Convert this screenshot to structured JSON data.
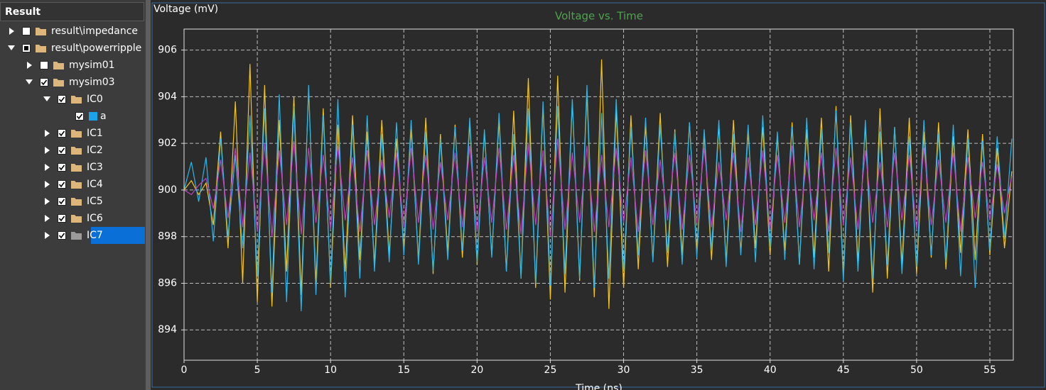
{
  "tree": {
    "title": "Result",
    "nodes": [
      {
        "label": "result\\impedance",
        "level": 0,
        "expanded": false,
        "checked": "unchecked",
        "icon": "folder"
      },
      {
        "label": "result\\powerripple",
        "level": 0,
        "expanded": true,
        "checked": "partial",
        "icon": "folder"
      },
      {
        "label": "mysim01",
        "level": 1,
        "expanded": false,
        "checked": "unchecked",
        "icon": "folder"
      },
      {
        "label": "mysim03",
        "level": 1,
        "expanded": true,
        "checked": "checked",
        "icon": "folder"
      },
      {
        "label": "IC0",
        "level": 2,
        "expanded": true,
        "checked": "checked",
        "icon": "folder"
      },
      {
        "label": "a",
        "level": 3,
        "expanded": null,
        "checked": "checked",
        "icon": "signal",
        "color": "#1aa3e8"
      },
      {
        "label": "IC1",
        "level": 2,
        "expanded": false,
        "checked": "checked",
        "icon": "folder"
      },
      {
        "label": "IC2",
        "level": 2,
        "expanded": false,
        "checked": "checked",
        "icon": "folder"
      },
      {
        "label": "IC3",
        "level": 2,
        "expanded": false,
        "checked": "checked",
        "icon": "folder"
      },
      {
        "label": "IC4",
        "level": 2,
        "expanded": false,
        "checked": "checked",
        "icon": "folder"
      },
      {
        "label": "IC5",
        "level": 2,
        "expanded": false,
        "checked": "checked",
        "icon": "folder"
      },
      {
        "label": "IC6",
        "level": 2,
        "expanded": false,
        "checked": "checked",
        "icon": "folder"
      },
      {
        "label": "IC7",
        "level": 2,
        "expanded": false,
        "checked": "checked",
        "icon": "folder",
        "selected": true
      }
    ]
  },
  "chart_data": {
    "type": "line",
    "title": "Voltage vs. Time",
    "y_label": "Voltage (mV)",
    "x_label": "Time (ns)",
    "xlim": [
      0,
      56.6
    ],
    "ylim": [
      892.7,
      906.9
    ],
    "xticks": [
      0,
      5,
      10,
      15,
      20,
      25,
      30,
      35,
      40,
      45,
      50,
      55
    ],
    "yticks": [
      894,
      896,
      898,
      900,
      902,
      904,
      906
    ],
    "grid": true,
    "x": [
      0,
      0.5,
      1,
      1.5,
      2,
      2.5,
      3,
      3.5,
      4,
      4.5,
      5,
      5.5,
      6,
      6.5,
      7,
      7.5,
      8,
      8.5,
      9,
      9.5,
      10,
      10.5,
      11,
      11.5,
      12,
      12.5,
      13,
      13.5,
      14,
      14.5,
      15,
      15.5,
      16,
      16.5,
      17,
      17.5,
      18,
      18.5,
      19,
      19.5,
      20,
      20.5,
      21,
      21.5,
      22,
      22.5,
      23,
      23.5,
      24,
      24.5,
      25,
      25.5,
      26,
      26.5,
      27,
      27.5,
      28,
      28.5,
      29,
      29.5,
      30,
      30.5,
      31,
      31.5,
      32,
      32.5,
      33,
      33.5,
      34,
      34.5,
      35,
      35.5,
      36,
      36.5,
      37,
      37.5,
      38,
      38.5,
      39,
      39.5,
      40,
      40.5,
      41,
      41.5,
      42,
      42.5,
      43,
      43.5,
      44,
      44.5,
      45,
      45.5,
      46,
      46.5,
      47,
      47.5,
      48,
      48.5,
      49,
      49.5,
      50,
      50.5,
      51,
      51.5,
      52,
      52.5,
      53,
      53.5,
      54,
      54.5,
      55,
      55.5,
      56,
      56.5
    ],
    "series": [
      {
        "color": "#f5c518",
        "values": [
          900,
          900.4,
          899.8,
          900.3,
          898.5,
          902.5,
          897.5,
          903.8,
          896,
          905.4,
          895.2,
          904.5,
          895,
          903,
          896.5,
          904,
          895.5,
          904.3,
          896,
          903.5,
          895.8,
          902.8,
          896.5,
          903.2,
          897,
          902.5,
          896.8,
          903,
          897.2,
          902.2,
          897.5,
          902.6,
          897,
          903.1,
          896.4,
          902.4,
          897.3,
          902.8,
          897.1,
          902.9,
          896.8,
          902.5,
          897.2,
          903,
          896.5,
          903.4,
          896.2,
          904.8,
          895.8,
          903.6,
          895.3,
          904.9,
          895.6,
          903.8,
          896.1,
          904.2,
          895.4,
          905.6,
          894.9,
          903.5,
          895.8,
          903.2,
          896.6,
          902.8,
          897,
          903.3,
          896.7,
          902.6,
          897.2,
          902.9,
          897.4,
          902.4,
          897,
          902.8,
          896.9,
          903,
          897.3,
          902.5,
          897.5,
          902.7,
          897.2,
          902.3,
          897.4,
          902.9,
          896.8,
          902.6,
          897.1,
          903.1,
          896.5,
          903.6,
          896.3,
          903.2,
          896.9,
          902.8,
          895.6,
          903.5,
          896.2,
          902.7,
          896.8,
          903.1,
          896.4,
          902.5,
          897.1,
          902.9,
          896.6,
          902.3,
          897.3,
          902.6,
          897,
          902.4,
          897.2,
          901.8,
          897.5,
          900.8
        ]
      },
      {
        "color": "#29b6e8",
        "values": [
          900,
          901.2,
          899.5,
          901.4,
          897.8,
          902.2,
          898,
          901.5,
          897.5,
          903.2,
          896.3,
          903.5,
          895.6,
          904.1,
          895.2,
          903.6,
          894.8,
          904.5,
          895.5,
          903.2,
          896,
          903.9,
          895.4,
          902.8,
          896.2,
          903.2,
          896.5,
          902.4,
          896.9,
          902.9,
          897.2,
          903,
          896.8,
          902.5,
          896.5,
          902.2,
          897,
          902.7,
          897.4,
          903.1,
          896.9,
          902.6,
          897.1,
          903.3,
          896.5,
          902.4,
          896.2,
          903.5,
          896,
          903.8,
          895.9,
          903.6,
          896.4,
          903.9,
          896.2,
          904.5,
          895.8,
          903.3,
          896.2,
          903.9,
          896.5,
          902.7,
          897.2,
          903.1,
          896.9,
          902.8,
          897.3,
          902.5,
          896.8,
          902.9,
          897.1,
          902.6,
          897.4,
          903,
          896.7,
          902.4,
          897.2,
          902.8,
          896.9,
          903.2,
          897.5,
          902.5,
          897,
          902.7,
          896.8,
          903.1,
          896.6,
          902.6,
          897.3,
          903.4,
          896.1,
          902.9,
          896.5,
          903,
          896.2,
          902.5,
          896.8,
          902.7,
          896.4,
          902.3,
          896.7,
          903,
          897.2,
          902.4,
          896.9,
          902.8,
          896.3,
          902.2,
          895.8,
          902.1,
          897.4,
          902.3,
          897.9,
          902.2
        ]
      },
      {
        "color": "#c040c0",
        "values": [
          900,
          899.8,
          900.2,
          900.5,
          899.2,
          901.3,
          898.8,
          901.8,
          898.4,
          901.6,
          898.2,
          902,
          898,
          901.7,
          898.5,
          902.1,
          898.1,
          901.8,
          898.6,
          901.5,
          898.3,
          901.9,
          898.7,
          901.4,
          898.2,
          901.7,
          898.5,
          901.3,
          898.8,
          901.6,
          898.4,
          901.8,
          898.6,
          901.5,
          898.3,
          901.2,
          898.7,
          901.6,
          898.4,
          901.9,
          898.2,
          901.4,
          898.6,
          901.8,
          898.3,
          901.5,
          898.1,
          902,
          898.5,
          901.7,
          898,
          902.2,
          898.3,
          901.6,
          898.6,
          901.9,
          898.2,
          901.5,
          898.4,
          901.8,
          898.6,
          901.4,
          898.2,
          901.7,
          898.5,
          901.3,
          898.7,
          901.6,
          898.3,
          901.5,
          898.6,
          901.8,
          898.4,
          901.2,
          898.7,
          901.6,
          898.2,
          901.4,
          898.5,
          901.7,
          898.3,
          901.5,
          898.6,
          901.9,
          898.4,
          901.3,
          898.7,
          901.6,
          898.2,
          901.8,
          898.5,
          901.4,
          898.3,
          901.7,
          898.6,
          901.2,
          898.4,
          901.6,
          898.7,
          901.5,
          898.3,
          901.8,
          898.5,
          901.3,
          898.6,
          901.6,
          898.2,
          901.4,
          898.8,
          901.2,
          898.7,
          901.1,
          899,
          900.6
        ]
      }
    ]
  }
}
